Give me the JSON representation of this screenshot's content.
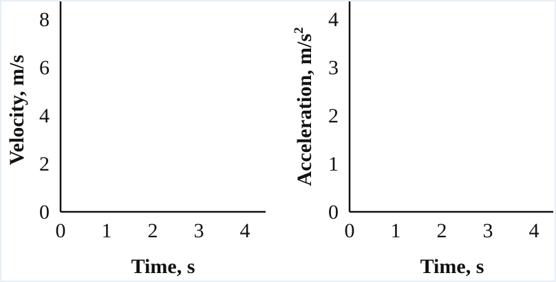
{
  "chart_data": [
    {
      "type": "line",
      "title": "",
      "xlabel": "Time, s",
      "ylabel": "Velocity, m/s",
      "xlim": [
        0,
        4.4
      ],
      "ylim": [
        0,
        8.7
      ],
      "x_ticks": [
        "0",
        "1",
        "2",
        "3",
        "4"
      ],
      "y_ticks": [
        "0",
        "2",
        "4",
        "6",
        "8"
      ],
      "series": [],
      "grid": false
    },
    {
      "type": "line",
      "title": "",
      "xlabel": "Time, s",
      "ylabel": "Acceleration, m/s",
      "ylabel_superscript": "2",
      "xlim": [
        0,
        4.4
      ],
      "ylim": [
        0,
        4.4
      ],
      "x_ticks": [
        "0",
        "1",
        "2",
        "3",
        "4"
      ],
      "y_ticks": [
        "0",
        "1",
        "2",
        "3",
        "4"
      ],
      "series": [],
      "grid": false
    }
  ],
  "colors": {
    "axis": "#111111",
    "border": "#e6eff6",
    "background": "#ffffff"
  }
}
